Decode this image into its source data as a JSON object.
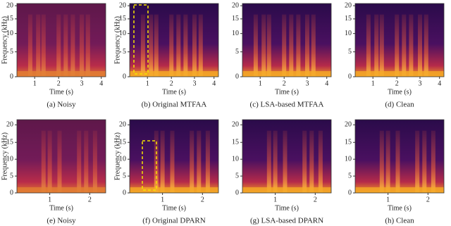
{
  "rows": [
    {
      "panels": [
        {
          "caption": "(a) Noisy",
          "y_label": "Frequency (kHz)",
          "x_label": "Time (s)",
          "y_ticks": [
            0,
            5,
            10,
            15,
            20
          ],
          "x_ticks": [
            1,
            2,
            3,
            4
          ]
        },
        {
          "caption": "(b) Original MTFAA",
          "y_label": "Frequency (kHz)",
          "x_label": "Time (s)",
          "y_ticks": [
            0,
            5,
            10,
            15,
            20
          ],
          "x_ticks": [
            1,
            2,
            3,
            4
          ]
        },
        {
          "caption": "(c) LSA-based MTFAA",
          "x_label": "Time (s)",
          "y_ticks": [
            0,
            5,
            10,
            15,
            20
          ],
          "x_ticks": [
            1,
            2,
            3,
            4
          ]
        },
        {
          "caption": "(d) Clean",
          "x_label": "Time (s)",
          "y_ticks": [
            0,
            5,
            10,
            15,
            20
          ],
          "x_ticks": [
            1,
            2,
            3,
            4
          ]
        }
      ]
    },
    {
      "panels": [
        {
          "caption": "(e) Noisy",
          "y_label": "Frequency (kHz)",
          "x_label": "Time (s)",
          "y_ticks": [
            0,
            5,
            10,
            15,
            20
          ],
          "x_ticks": [
            1,
            2
          ]
        },
        {
          "caption": "(f) Original DPARN",
          "y_label": "Frequency (kHz)",
          "x_label": "Time (s)",
          "y_ticks": [
            0,
            5,
            10,
            15,
            20
          ],
          "x_ticks": [
            1,
            2
          ]
        },
        {
          "caption": "(g) LSA-based DPARN",
          "x_label": "Time (s)",
          "y_ticks": [
            0,
            5,
            10,
            15,
            20
          ],
          "x_ticks": [
            1,
            2
          ]
        },
        {
          "caption": "(h) Clean",
          "x_label": "Time (s)",
          "y_ticks": [
            0,
            5,
            10,
            15,
            20
          ],
          "x_ticks": [
            1,
            2
          ]
        }
      ]
    }
  ]
}
